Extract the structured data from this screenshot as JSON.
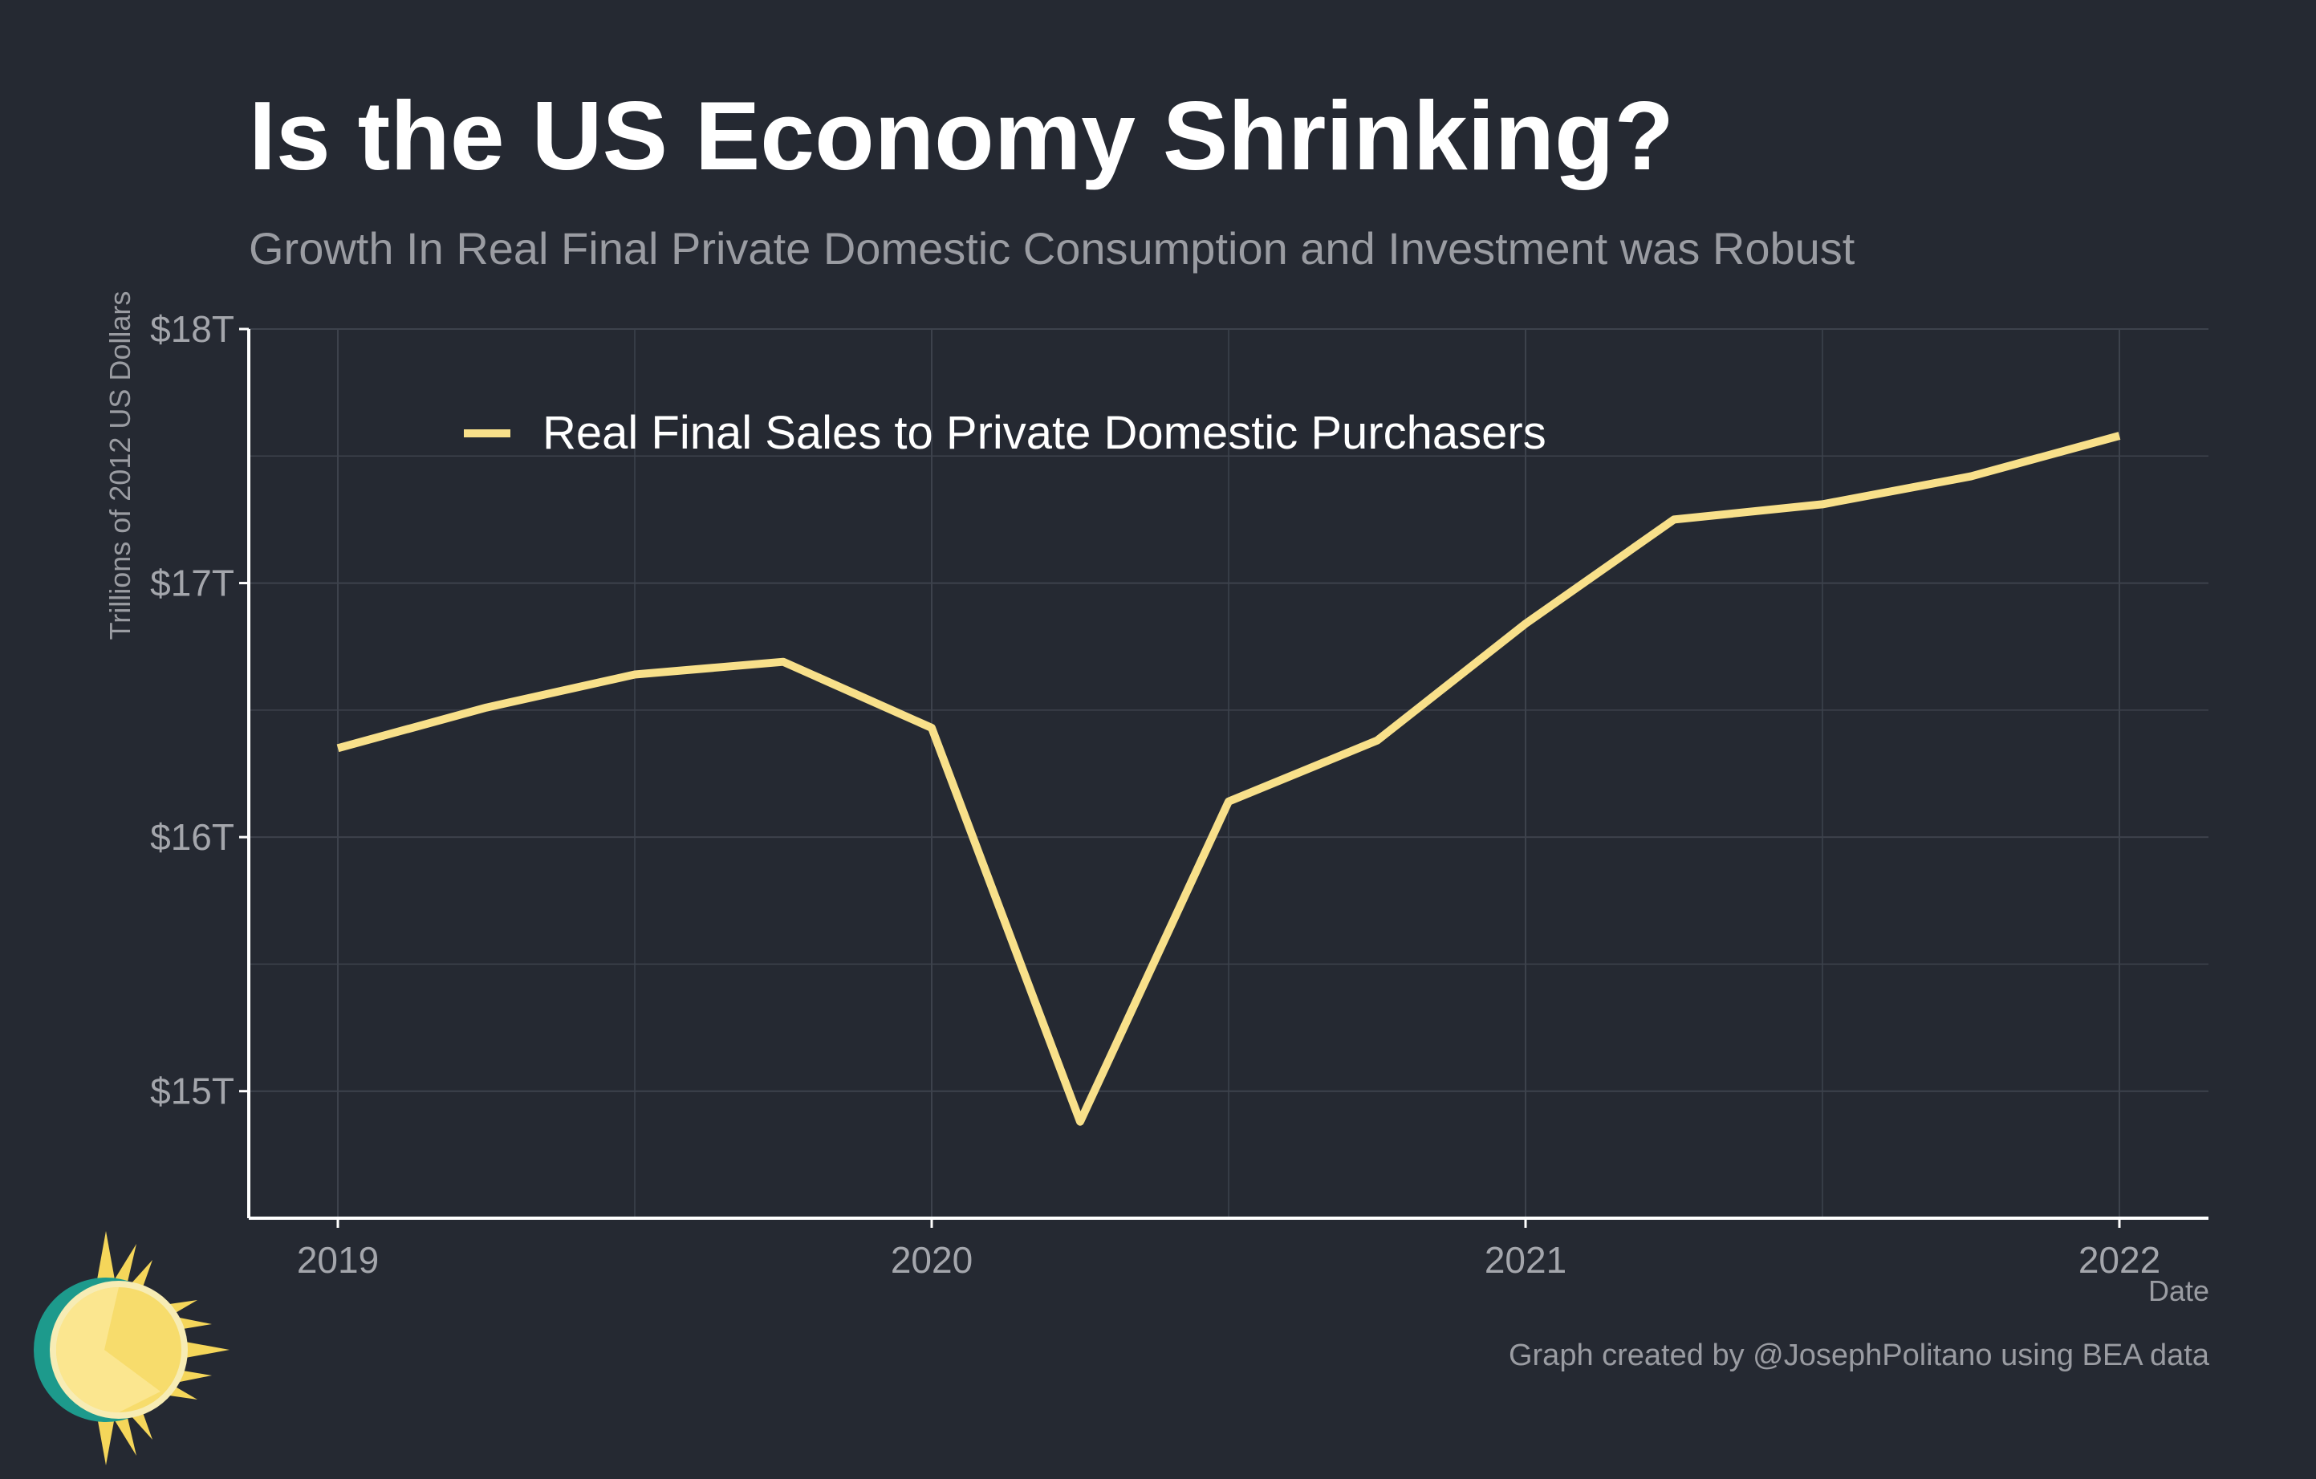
{
  "title": "Is the US Economy Shrinking?",
  "subtitle": "Growth In Real Final Private Domestic Consumption and Investment was Robust",
  "y_axis_label": "Trillions of 2012 US Dollars",
  "x_axis_label": "Date",
  "credit": "Graph created by @JosephPolitano using BEA data",
  "colors": {
    "background": "#252932",
    "line": "#f8e08a",
    "grid": "#3d424c",
    "axis": "#ffffff",
    "tick_text": "#a4a6ac"
  },
  "chart_data": {
    "type": "line",
    "title": "Is the US Economy Shrinking?",
    "subtitle": "Growth In Real Final Private Domestic Consumption and Investment was Robust",
    "xlabel": "Date",
    "ylabel": "Trillions of 2012 US Dollars",
    "xlim": [
      2018.85,
      2022.15
    ],
    "ylim": [
      14.5,
      18.0
    ],
    "x_ticks": [
      {
        "value": 2019,
        "label": "2019"
      },
      {
        "value": 2020,
        "label": "2020"
      },
      {
        "value": 2021,
        "label": "2021"
      },
      {
        "value": 2022,
        "label": "2022"
      }
    ],
    "y_ticks": [
      {
        "value": 15,
        "label": "$15T"
      },
      {
        "value": 16,
        "label": "$16T"
      },
      {
        "value": 17,
        "label": "$17T"
      },
      {
        "value": 18,
        "label": "$18T"
      }
    ],
    "minor_y_gridlines": [
      14.5,
      15.5,
      16.5,
      17.5
    ],
    "minor_x_gridlines": [
      2019.5,
      2020.5,
      2021.5
    ],
    "grid": true,
    "legend_position": "top-left",
    "series": [
      {
        "name": "Real Final Sales to Private Domestic Purchasers",
        "color": "#f8e08a",
        "x": [
          2019.0,
          2019.25,
          2019.5,
          2019.75,
          2020.0,
          2020.25,
          2020.5,
          2020.75,
          2021.0,
          2021.25,
          2021.5,
          2021.75,
          2022.0
        ],
        "values": [
          16.35,
          16.51,
          16.64,
          16.69,
          16.43,
          14.88,
          16.14,
          16.38,
          16.84,
          17.25,
          17.31,
          17.42,
          17.58
        ]
      }
    ]
  }
}
